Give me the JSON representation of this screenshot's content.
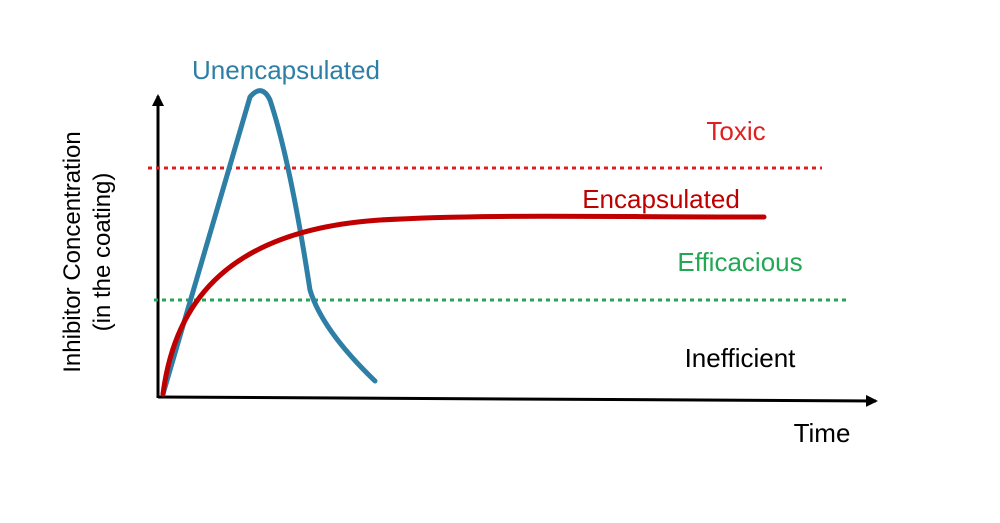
{
  "diagram": {
    "xlabel": "Time",
    "ylabel_line1": "Inhibitor Concentration",
    "ylabel_line2": "(in the coating)",
    "curves": {
      "unencapsulated": {
        "label": "Unencapsulated",
        "color": "#2E7FA6"
      },
      "encapsulated": {
        "label": "Encapsulated",
        "color": "#C00000"
      }
    },
    "thresholds": {
      "toxic": {
        "label": "Toxic",
        "color": "#E02020"
      },
      "efficacious": {
        "label": "Efficacious",
        "color": "#22A855"
      }
    },
    "zones": {
      "inefficient": {
        "label": "Inefficient",
        "color": "#000000"
      }
    }
  }
}
